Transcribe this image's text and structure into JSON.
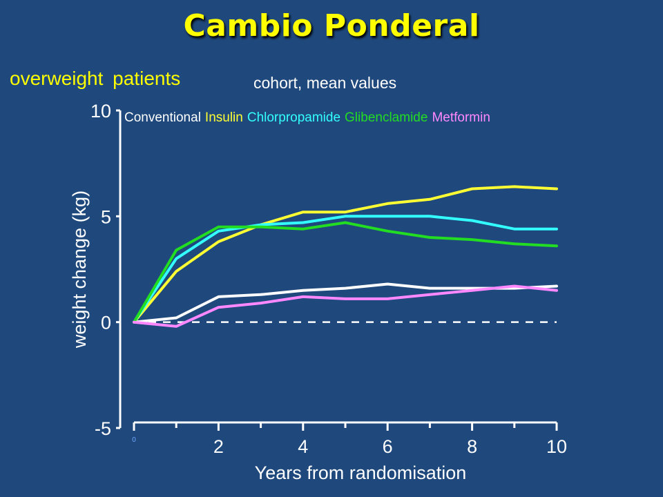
{
  "slide": {
    "title": "Cambio Ponderal",
    "subtitle_left": "overweight patients",
    "subtitle_right": "cohort, mean values"
  },
  "colors": {
    "background": "#1f497d",
    "title": "#ffff00",
    "axis": "#ffffff"
  },
  "chart_data": {
    "type": "line",
    "title": "",
    "xlabel": "Years from randomisation",
    "ylabel": "weight change (kg)",
    "xlim": [
      0,
      10
    ],
    "ylim": [
      -5,
      10
    ],
    "x_ticks": [
      2,
      4,
      6,
      8,
      10
    ],
    "x_tick_labels": [
      "2",
      "4",
      "6",
      "8",
      "10"
    ],
    "x_origin_label": "0",
    "y_ticks": [
      -5,
      0,
      5,
      10
    ],
    "y_tick_labels": [
      "-5",
      "0",
      "5",
      "10"
    ],
    "reference_line": {
      "y": 0,
      "style": "dashed"
    },
    "grid": false,
    "legend_position": "top",
    "x": [
      0,
      1,
      2,
      3,
      4,
      5,
      6,
      7,
      8,
      9,
      10
    ],
    "series": [
      {
        "name": "Conventional",
        "color": "#ffffff",
        "values": [
          0,
          0.2,
          1.2,
          1.3,
          1.5,
          1.6,
          1.8,
          1.6,
          1.6,
          1.6,
          1.7
        ]
      },
      {
        "name": "Insulin",
        "color": "#ffff33",
        "values": [
          0,
          2.4,
          3.8,
          4.6,
          5.2,
          5.2,
          5.6,
          5.8,
          6.3,
          6.4,
          6.3
        ]
      },
      {
        "name": "Chlorpropamide",
        "color": "#33ffff",
        "values": [
          0,
          3.0,
          4.3,
          4.6,
          4.7,
          5.0,
          5.0,
          5.0,
          4.8,
          4.4,
          4.4
        ]
      },
      {
        "name": "Glibenclamide",
        "color": "#22dd22",
        "values": [
          0,
          3.4,
          4.5,
          4.5,
          4.4,
          4.7,
          4.3,
          4.0,
          3.9,
          3.7,
          3.6
        ]
      },
      {
        "name": "Metformin",
        "color": "#ff88ff",
        "values": [
          0,
          -0.2,
          0.7,
          0.9,
          1.2,
          1.1,
          1.1,
          1.3,
          1.5,
          1.7,
          1.5
        ]
      }
    ]
  }
}
